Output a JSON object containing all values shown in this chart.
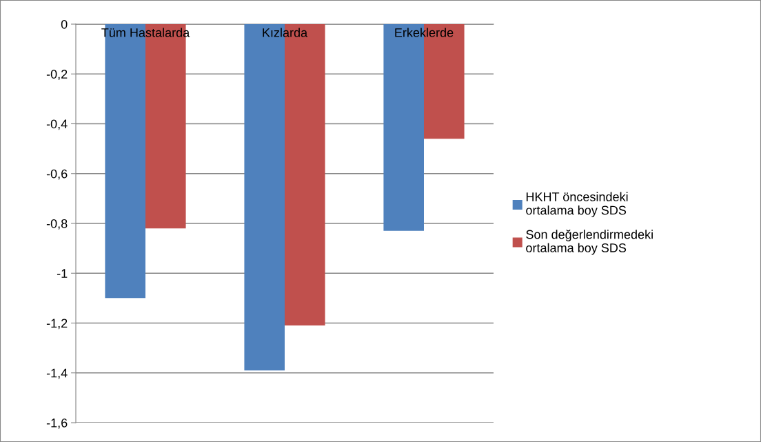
{
  "chart_data": {
    "type": "bar",
    "categories": [
      "Tüm Hastalarda",
      "Kızlarda",
      "Erkeklerde"
    ],
    "series": [
      {
        "name": "HKHT öncesindeki ortalama boy SDS",
        "color": "#4f81bd",
        "values": [
          -1.1,
          -1.39,
          -0.83
        ]
      },
      {
        "name": "Son değerlendirmedeki ortalama boy SDS",
        "color": "#c0504d",
        "values": [
          -0.82,
          -1.21,
          -0.46
        ]
      }
    ],
    "ylim": [
      -1.6,
      0
    ],
    "yticks": [
      {
        "value": -1.6,
        "label": "-1,6"
      },
      {
        "value": -1.4,
        "label": "-1,4"
      },
      {
        "value": -1.2,
        "label": "-1,2"
      },
      {
        "value": -1,
        "label": "-1"
      },
      {
        "value": -0.8,
        "label": "-0,8"
      },
      {
        "value": -0.6,
        "label": "-0,6"
      },
      {
        "value": -0.4,
        "label": "-0,4"
      },
      {
        "value": -0.2,
        "label": "-0,2"
      },
      0
    ],
    "grid": "y",
    "legend": "right"
  }
}
